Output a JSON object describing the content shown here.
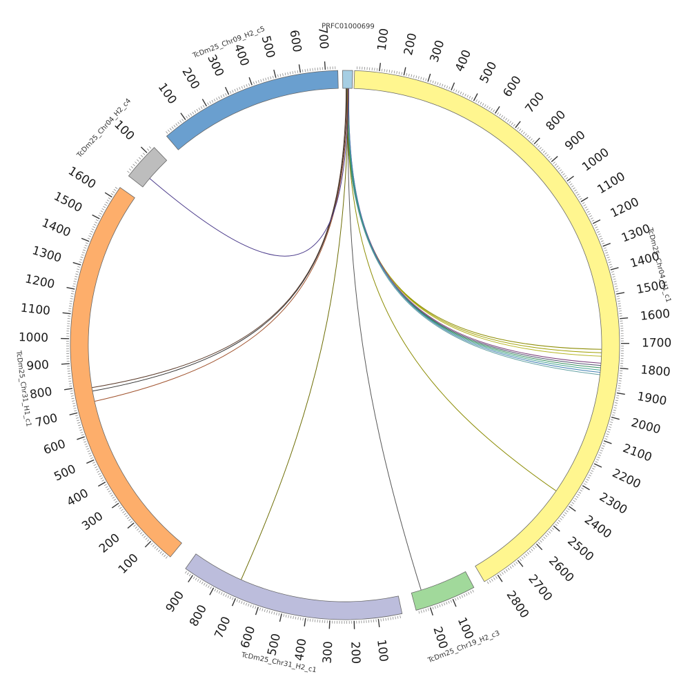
{
  "diagram": {
    "type": "circos",
    "contigs": [
      {
        "id": "query",
        "name": "PRFC01000699",
        "length": 8,
        "color": "#a6cee3",
        "ticks": []
      },
      {
        "id": "chr04_h1",
        "name": "TcDm25_Chr04_H1_c1",
        "length": 2860,
        "color": "#fff68f",
        "ticks": [
          "100",
          "200",
          "300",
          "400",
          "500",
          "600",
          "700",
          "800",
          "900",
          "1000",
          "1100",
          "1200",
          "1300",
          "1400",
          "1500",
          "1600",
          "1700",
          "1800",
          "1900",
          "2000",
          "2100",
          "2200",
          "2300",
          "2400",
          "2500",
          "2600",
          "2700",
          "2800"
        ]
      },
      {
        "id": "chr19_h2",
        "name": "TcDm25_Chr19_H2_c3",
        "length": 260,
        "color": "#a1d99b",
        "ticks": [
          "100",
          "200"
        ]
      },
      {
        "id": "chr31_h2",
        "name": "TcDm25_Chr31_H2_c1",
        "length": 940,
        "color": "#bcbddc",
        "ticks": [
          "100",
          "200",
          "300",
          "400",
          "500",
          "600",
          "700",
          "800",
          "900"
        ]
      },
      {
        "id": "chr31_h1",
        "name": "TcDm25_Chr31_H1_c1",
        "length": 1650,
        "color": "#fdae6b",
        "ticks": [
          "100",
          "200",
          "300",
          "400",
          "500",
          "600",
          "700",
          "800",
          "900",
          "1000",
          "1100",
          "1200",
          "1300",
          "1400",
          "1500",
          "1600"
        ]
      },
      {
        "id": "chr04_h2",
        "name": "TcDm25_Chr04_H2_c4",
        "length": 130,
        "color": "#bdbdbd",
        "ticks": [
          "100"
        ]
      },
      {
        "id": "chr09_h2",
        "name": "TcDm25_Chr09_H2_c5",
        "length": 750,
        "color": "#6a9fcf",
        "ticks": [
          "100",
          "200",
          "300",
          "400",
          "500",
          "600",
          "700"
        ]
      }
    ],
    "links": [
      {
        "from": "query",
        "to": "chr04_h1",
        "target_pos": 1725,
        "color": "#8b8b00"
      },
      {
        "from": "query",
        "to": "chr04_h1",
        "target_pos": 1740,
        "color": "#a0a000"
      },
      {
        "from": "query",
        "to": "chr04_h1",
        "target_pos": 1755,
        "color": "#b5b520"
      },
      {
        "from": "query",
        "to": "chr04_h1",
        "target_pos": 1785,
        "color": "#7b3f7b"
      },
      {
        "from": "query",
        "to": "chr04_h1",
        "target_pos": 1795,
        "color": "#4a4a6a"
      },
      {
        "from": "query",
        "to": "chr04_h1",
        "target_pos": 1805,
        "color": "#2e8b57"
      },
      {
        "from": "query",
        "to": "chr04_h1",
        "target_pos": 1815,
        "color": "#3c9d8c"
      },
      {
        "from": "query",
        "to": "chr04_h1",
        "target_pos": 1825,
        "color": "#4682b4"
      },
      {
        "from": "query",
        "to": "chr04_h1",
        "target_pos": 1835,
        "color": "#5f9ea0"
      },
      {
        "from": "query",
        "to": "chr04_h1",
        "target_pos": 2378,
        "color": "#8b8b00"
      },
      {
        "from": "query",
        "to": "chr19_h2",
        "target_pos": 215,
        "color": "#555555"
      },
      {
        "from": "query",
        "to": "chr31_h2",
        "target_pos": 710,
        "color": "#6b6b00"
      },
      {
        "from": "query",
        "to": "chr31_h1",
        "target_pos": 790,
        "color": "#5a3a2a"
      },
      {
        "from": "query",
        "to": "chr31_h1",
        "target_pos": 775,
        "color": "#333333"
      },
      {
        "from": "query",
        "to": "chr31_h1",
        "target_pos": 730,
        "color": "#a0522d"
      },
      {
        "from": "query",
        "to": "chr04_h2",
        "target_pos": 40,
        "color": "#4b3b8b"
      }
    ]
  }
}
